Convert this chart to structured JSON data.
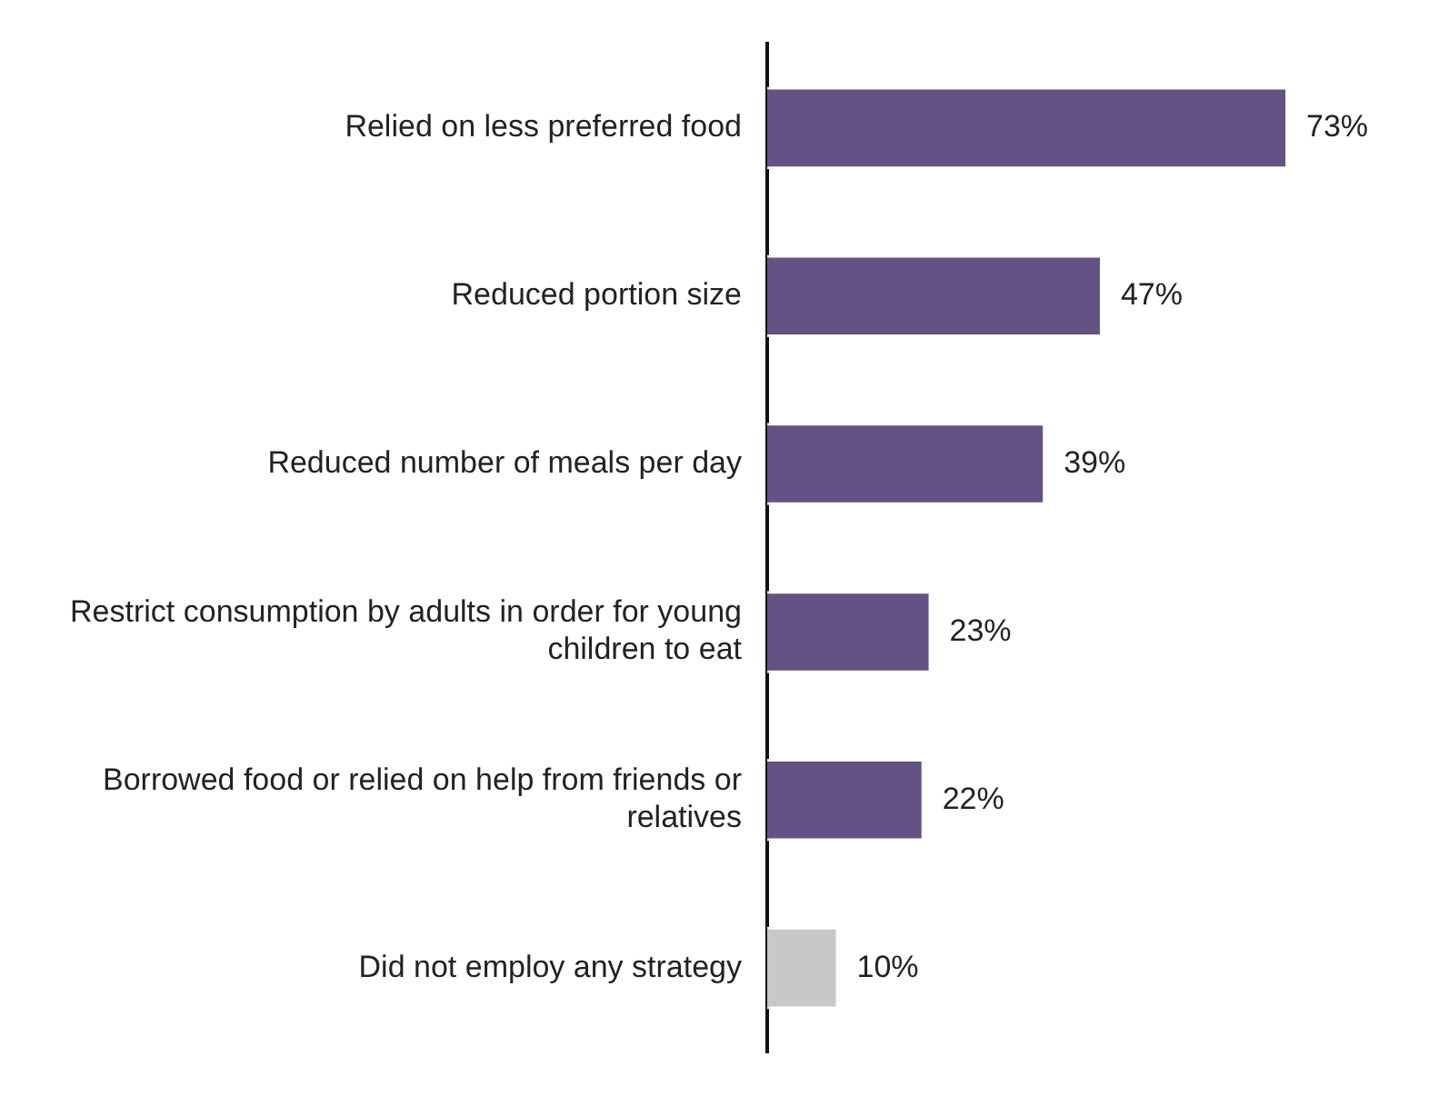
{
  "chart_data": {
    "type": "bar",
    "orientation": "horizontal",
    "categories": [
      "Relied on less preferred food",
      "Reduced portion size",
      "Reduced number of meals per day",
      "Restrict consumption by adults in order for young children to eat",
      "Borrowed food or relied on help from friends or relatives",
      "Did not employ any strategy"
    ],
    "values": [
      73,
      47,
      39,
      23,
      22,
      10
    ],
    "colors": [
      "#635283",
      "#635283",
      "#635283",
      "#635283",
      "#635283",
      "#c8c8ca"
    ],
    "value_labels": [
      "73%",
      "47%",
      "39%",
      "23%",
      "22%",
      "10%"
    ],
    "tick_labels": "y",
    "grid": false,
    "legend": false
  }
}
